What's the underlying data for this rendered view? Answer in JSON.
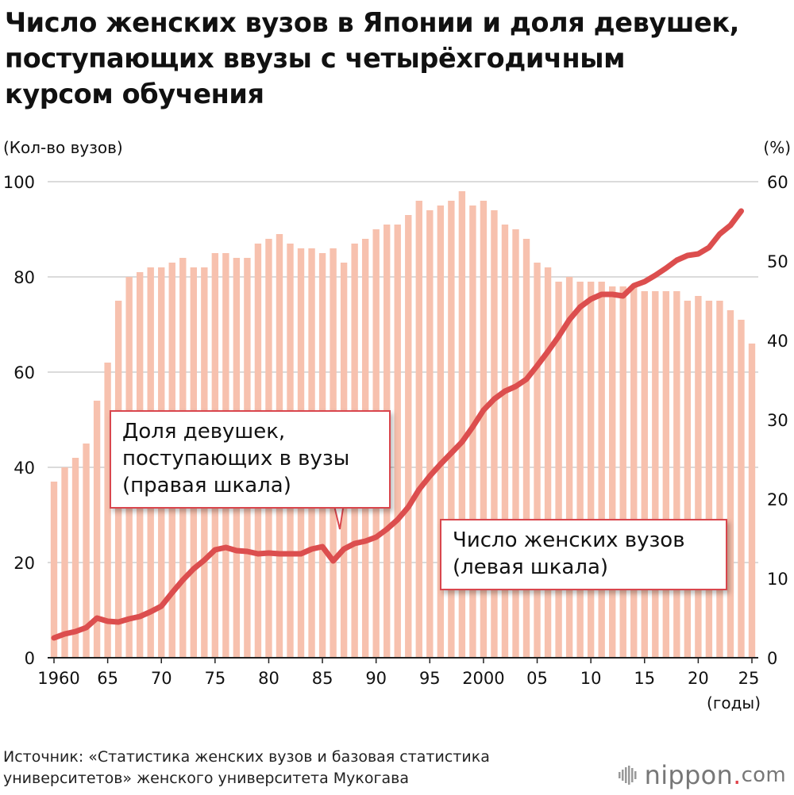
{
  "title_lines": [
    "Число женских вузов в Японии и доля девушек,",
    "поступающих ввузы с четырёхгодичным",
    "курсом обучения"
  ],
  "left_unit": "(Кол-во вузов)",
  "right_unit": "(%)",
  "x_unit": "(годы)",
  "source_lines": [
    "Источник: «Статистика женских вузов и базовая статистика",
    "университетов» женского университета Мукогава"
  ],
  "logo": {
    "text": "nippon",
    "dot": ".",
    "suffix": "com",
    "icon": "nippon-logo-icon"
  },
  "callouts": {
    "share": [
      "Доля девушек,",
      "поступающих в вузы",
      "(правая шкала)"
    ],
    "count": [
      "Число женских вузов",
      "(левая шкала)"
    ]
  },
  "colors": {
    "bars": "#f7c1ae",
    "line": "#dc4e4e",
    "grid": "#cfcfcf",
    "axis": "#222222"
  },
  "chart_data": {
    "type": "bar",
    "x": [
      1960,
      1961,
      1962,
      1963,
      1964,
      1965,
      1966,
      1967,
      1968,
      1969,
      1970,
      1971,
      1972,
      1973,
      1974,
      1975,
      1976,
      1977,
      1978,
      1979,
      1980,
      1981,
      1982,
      1983,
      1984,
      1985,
      1986,
      1987,
      1988,
      1989,
      1990,
      1991,
      1992,
      1993,
      1994,
      1995,
      1996,
      1997,
      1998,
      1999,
      2000,
      2001,
      2002,
      2003,
      2004,
      2005,
      2006,
      2007,
      2008,
      2009,
      2010,
      2011,
      2012,
      2013,
      2014,
      2015,
      2016,
      2017,
      2018,
      2019,
      2020,
      2021,
      2022,
      2023,
      2024,
      2025
    ],
    "x_tick_values": [
      1960,
      1965,
      1970,
      1975,
      1980,
      1985,
      1990,
      1995,
      2000,
      2005,
      2010,
      2015,
      2020,
      2025
    ],
    "x_tick_labels": [
      "1960",
      "65",
      "70",
      "75",
      "80",
      "85",
      "90",
      "95",
      "2000",
      "05",
      "10",
      "15",
      "20",
      "25"
    ],
    "series": [
      {
        "name": "Число женских вузов",
        "axis": "left",
        "type": "bar",
        "values": [
          37,
          40,
          42,
          45,
          54,
          62,
          75,
          80,
          81,
          82,
          82,
          83,
          84,
          82,
          82,
          85,
          85,
          84,
          84,
          87,
          88,
          89,
          87,
          86,
          86,
          85,
          86,
          83,
          87,
          88,
          90,
          91,
          91,
          93,
          96,
          94,
          95,
          96,
          98,
          95,
          96,
          94,
          91,
          90,
          88,
          83,
          82,
          79,
          80,
          79,
          79,
          79,
          78,
          78,
          78,
          77,
          77,
          77,
          77,
          75,
          76,
          75,
          75,
          73,
          71,
          66
        ]
      },
      {
        "name": "Доля девушек, поступающих в вузы",
        "axis": "right",
        "type": "line",
        "x": [
          1960,
          1961,
          1962,
          1963,
          1964,
          1965,
          1966,
          1967,
          1968,
          1969,
          1970,
          1971,
          1972,
          1973,
          1974,
          1975,
          1976,
          1977,
          1978,
          1979,
          1980,
          1981,
          1982,
          1983,
          1984,
          1985,
          1986,
          1987,
          1988,
          1989,
          1990,
          1991,
          1992,
          1993,
          1994,
          1995,
          1996,
          1997,
          1998,
          1999,
          2000,
          2001,
          2002,
          2003,
          2004,
          2005,
          2006,
          2007,
          2008,
          2009,
          2010,
          2011,
          2012,
          2013,
          2014,
          2015,
          2016,
          2017,
          2018,
          2019,
          2020,
          2021,
          2022,
          2023,
          2024
        ],
        "values": [
          2.5,
          3.0,
          3.3,
          3.8,
          5.0,
          4.6,
          4.5,
          4.9,
          5.2,
          5.8,
          6.5,
          8.2,
          9.8,
          11.2,
          12.3,
          13.6,
          13.9,
          13.5,
          13.4,
          13.1,
          13.2,
          13.1,
          13.1,
          13.1,
          13.7,
          14.0,
          12.2,
          13.7,
          14.4,
          14.7,
          15.2,
          16.2,
          17.4,
          19.0,
          21.2,
          22.9,
          24.4,
          25.8,
          27.2,
          29.1,
          31.2,
          32.6,
          33.6,
          34.2,
          35.1,
          36.8,
          38.6,
          40.5,
          42.6,
          44.2,
          45.2,
          45.8,
          45.8,
          45.6,
          46.9,
          47.4,
          48.2,
          49.1,
          50.1,
          50.7,
          50.9,
          51.7,
          53.4,
          54.5,
          56.3
        ]
      }
    ],
    "y_left": {
      "range": [
        0,
        100
      ],
      "ticks": [
        0,
        20,
        40,
        60,
        80,
        100
      ]
    },
    "y_right": {
      "range": [
        0,
        60
      ],
      "ticks": [
        0,
        10,
        20,
        30,
        40,
        50,
        60
      ]
    },
    "grid": true
  }
}
